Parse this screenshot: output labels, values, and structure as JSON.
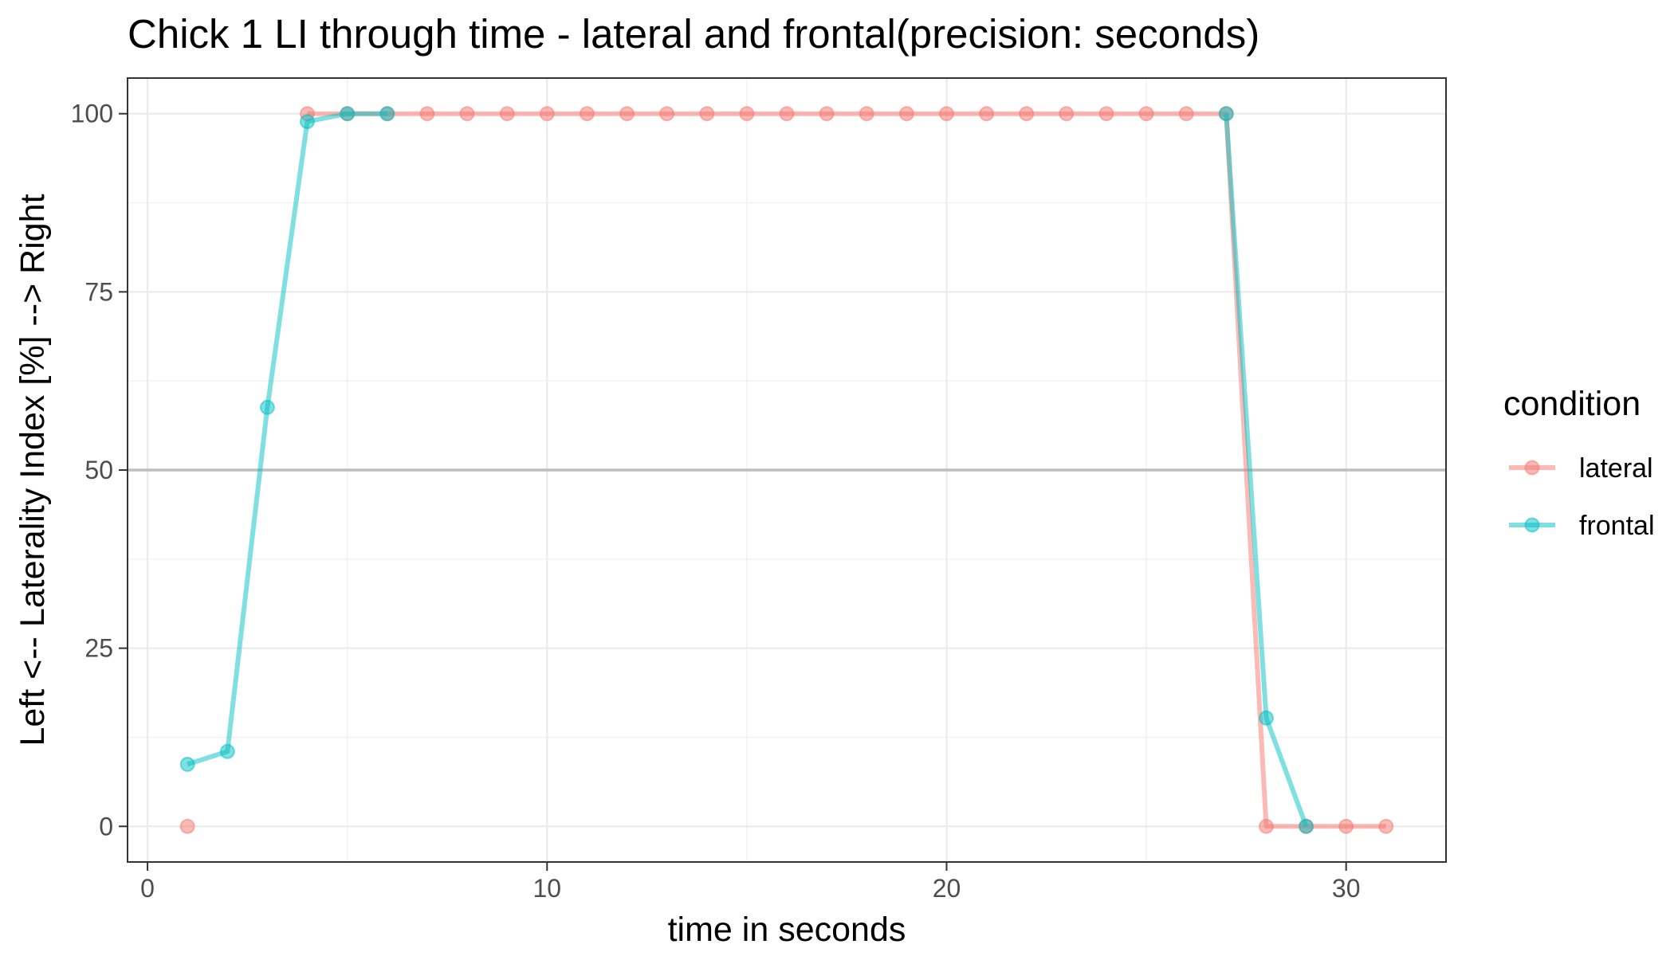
{
  "chart_data": {
    "type": "line",
    "title": "Chick 1 LI through time - lateral and frontal(precision: seconds)",
    "xlabel": "time in seconds",
    "ylabel": "Left <-- Laterality Index [%] --> Right",
    "xlim": [
      -0.5,
      32.5
    ],
    "ylim": [
      -5,
      105
    ],
    "x_ticks": [
      0,
      10,
      20,
      30
    ],
    "y_ticks": [
      0,
      25,
      50,
      75,
      100
    ],
    "reference_line": 50,
    "grid": true,
    "legend": {
      "title": "condition",
      "placement": "right"
    },
    "series": [
      {
        "name": "lateral",
        "color": "#F8766D",
        "points": [
          [
            1,
            0
          ],
          [
            4,
            100
          ],
          [
            5,
            100
          ],
          [
            6,
            100
          ],
          [
            7,
            100
          ],
          [
            8,
            100
          ],
          [
            9,
            100
          ],
          [
            10,
            100
          ],
          [
            11,
            100
          ],
          [
            12,
            100
          ],
          [
            13,
            100
          ],
          [
            14,
            100
          ],
          [
            15,
            100
          ],
          [
            16,
            100
          ],
          [
            17,
            100
          ],
          [
            18,
            100
          ],
          [
            19,
            100
          ],
          [
            20,
            100
          ],
          [
            21,
            100
          ],
          [
            22,
            100
          ],
          [
            23,
            100
          ],
          [
            24,
            100
          ],
          [
            25,
            100
          ],
          [
            26,
            100
          ],
          [
            27,
            100
          ],
          [
            28,
            0
          ],
          [
            29,
            0
          ],
          [
            30,
            0
          ],
          [
            31,
            0
          ]
        ],
        "line_segments": [
          [
            4,
            31
          ]
        ]
      },
      {
        "name": "frontal",
        "color": "#00BFC4",
        "points": [
          [
            1,
            8.7
          ],
          [
            2,
            10.5
          ],
          [
            3,
            58.8
          ],
          [
            4,
            98.9
          ],
          [
            5,
            100
          ],
          [
            6,
            100
          ],
          [
            27,
            100
          ],
          [
            28,
            15.2
          ],
          [
            29,
            0
          ]
        ],
        "line_segments": [
          [
            1,
            6
          ],
          [
            27,
            29
          ]
        ]
      }
    ]
  }
}
